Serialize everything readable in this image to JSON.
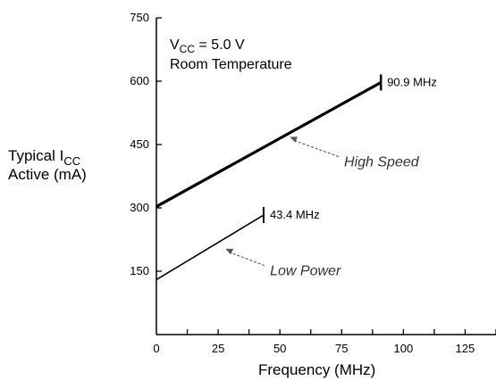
{
  "chart_data": {
    "type": "line",
    "title": "",
    "conditions": {
      "vcc_prefix": "V",
      "vcc_sub": "CC",
      "vcc_value": " = 5.0 V",
      "temperature": "Room Temperature"
    },
    "xlabel": "Frequency (MHz)",
    "ylabel": {
      "line1_prefix": "Typical I",
      "line1_sub": "CC",
      "line2": "Active (mA)"
    },
    "xlim": [
      0,
      137.5
    ],
    "ylim": [
      0,
      750
    ],
    "x_ticks": [
      0,
      25,
      50,
      75,
      100,
      125
    ],
    "x_tick_labels": [
      "0",
      "25",
      "50",
      "75",
      "100",
      "125"
    ],
    "y_ticks": [
      150,
      300,
      450,
      600,
      750
    ],
    "y_tick_labels": [
      "150",
      "300",
      "450",
      "600",
      "750"
    ],
    "grid": false,
    "series": [
      {
        "name": "High Speed",
        "x": [
          0,
          90.9
        ],
        "y": [
          303,
          597
        ],
        "end_label": "90.9 MHz",
        "label_x": 76,
        "label_y": 398,
        "arrow_tip_x": 54,
        "arrow_tip_y": 468,
        "color": "#000000",
        "weight": "thick"
      },
      {
        "name": "Low Power",
        "x": [
          0,
          43.4
        ],
        "y": [
          130,
          283
        ],
        "end_label": "43.4 MHz",
        "label_x": 46,
        "label_y": 140,
        "arrow_tip_x": 28,
        "arrow_tip_y": 203,
        "color": "#000000",
        "weight": "thin"
      }
    ]
  }
}
